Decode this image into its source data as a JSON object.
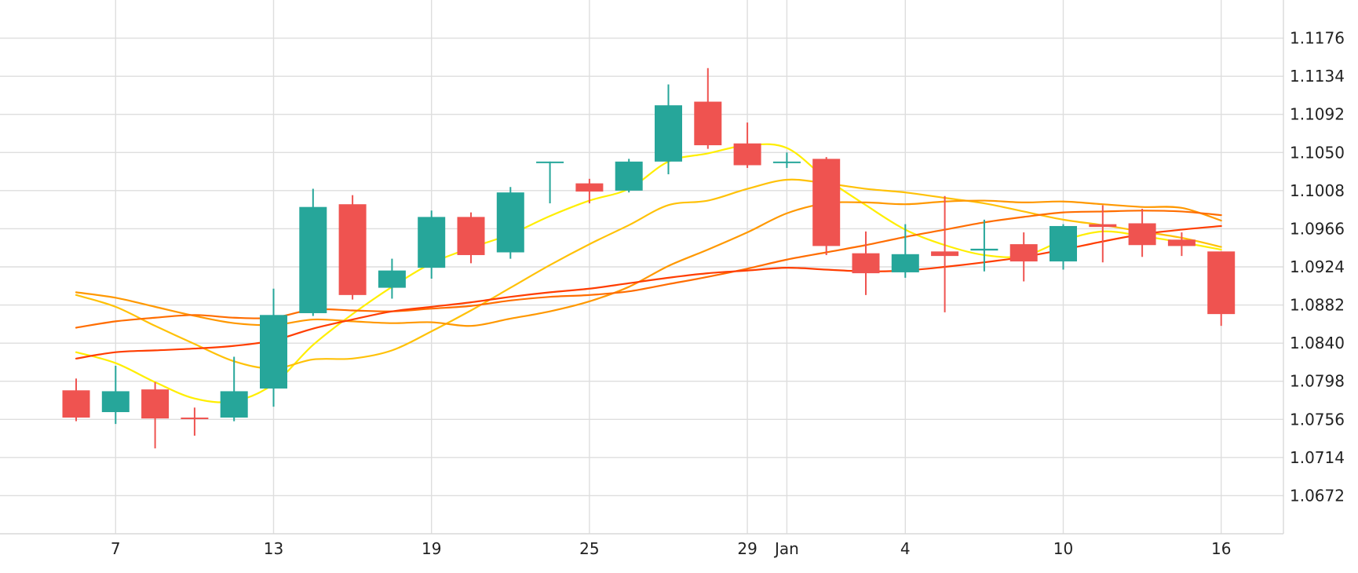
{
  "chart_data": {
    "type": "candlestick",
    "title": "",
    "xlabel": "",
    "ylabel": "",
    "ylim": [
      1.063,
      1.1218
    ],
    "y_ticks": [
      1.1176,
      1.1134,
      1.1092,
      1.105,
      1.1008,
      1.0966,
      1.0924,
      1.0882,
      1.084,
      1.0798,
      1.0756,
      1.0714,
      1.0672
    ],
    "x_tick_labels": [
      {
        "pos": 1,
        "label": "7"
      },
      {
        "pos": 5,
        "label": "13"
      },
      {
        "pos": 9,
        "label": "19"
      },
      {
        "pos": 13,
        "label": "25"
      },
      {
        "pos": 17,
        "label": "29"
      },
      {
        "pos": 18,
        "label": "Jan"
      },
      {
        "pos": 21,
        "label": "4"
      },
      {
        "pos": 25,
        "label": "10"
      },
      {
        "pos": 29,
        "label": "16"
      }
    ],
    "grid": true,
    "legend": "none",
    "colors": {
      "up": "#26a69a",
      "down": "#ef5350",
      "ma_colors": [
        "#ffee00",
        "#ffc107",
        "#ff9800",
        "#ff6d00",
        "#ff3d00"
      ]
    },
    "candles": [
      {
        "x": 0,
        "open": 1.0788,
        "high": 1.0801,
        "low": 1.0754,
        "close": 1.0758
      },
      {
        "x": 1,
        "open": 1.0764,
        "high": 1.0815,
        "low": 1.0751,
        "close": 1.0787
      },
      {
        "x": 2,
        "open": 1.0789,
        "high": 1.0797,
        "low": 1.0724,
        "close": 1.0757
      },
      {
        "x": 3,
        "open": 1.0758,
        "high": 1.0769,
        "low": 1.0738,
        "close": 1.0757
      },
      {
        "x": 4,
        "open": 1.0758,
        "high": 1.0825,
        "low": 1.0754,
        "close": 1.0787
      },
      {
        "x": 5,
        "open": 1.079,
        "high": 1.09,
        "low": 1.077,
        "close": 1.0871
      },
      {
        "x": 6,
        "open": 1.0873,
        "high": 1.101,
        "low": 1.087,
        "close": 1.099
      },
      {
        "x": 7,
        "open": 1.0993,
        "high": 1.1003,
        "low": 1.0888,
        "close": 1.0893
      },
      {
        "x": 8,
        "open": 1.0901,
        "high": 1.0933,
        "low": 1.0889,
        "close": 1.092
      },
      {
        "x": 9,
        "open": 1.0923,
        "high": 1.0986,
        "low": 1.0911,
        "close": 1.0979
      },
      {
        "x": 10,
        "open": 1.0979,
        "high": 1.0984,
        "low": 1.0928,
        "close": 1.0937
      },
      {
        "x": 11,
        "open": 1.094,
        "high": 1.1012,
        "low": 1.0933,
        "close": 1.1006
      },
      {
        "x": 12,
        "open": 1.104,
        "high": 1.104,
        "low": 1.0994,
        "close": 1.104
      },
      {
        "x": 13,
        "open": 1.1016,
        "high": 1.1021,
        "low": 1.0994,
        "close": 1.1007
      },
      {
        "x": 14,
        "open": 1.1008,
        "high": 1.1043,
        "low": 1.1006,
        "close": 1.104
      },
      {
        "x": 15,
        "open": 1.104,
        "high": 1.1125,
        "low": 1.1026,
        "close": 1.1102
      },
      {
        "x": 16,
        "open": 1.1106,
        "high": 1.1143,
        "low": 1.1054,
        "close": 1.1058
      },
      {
        "x": 17,
        "open": 1.106,
        "high": 1.1083,
        "low": 1.1033,
        "close": 1.1036
      },
      {
        "x": 18,
        "open": 1.104,
        "high": 1.105,
        "low": 1.1033,
        "close": 1.104
      },
      {
        "x": 19,
        "open": 1.1043,
        "high": 1.1045,
        "low": 1.0937,
        "close": 1.0947
      },
      {
        "x": 20,
        "open": 1.0939,
        "high": 1.0963,
        "low": 1.0893,
        "close": 1.0917
      },
      {
        "x": 21,
        "open": 1.0918,
        "high": 1.0971,
        "low": 1.0912,
        "close": 1.0938
      },
      {
        "x": 22,
        "open": 1.0941,
        "high": 1.1002,
        "low": 1.0874,
        "close": 1.0936
      },
      {
        "x": 23,
        "open": 1.0942,
        "high": 1.0976,
        "low": 1.0919,
        "close": 1.0944
      },
      {
        "x": 24,
        "open": 1.0949,
        "high": 1.0962,
        "low": 1.0908,
        "close": 1.093
      },
      {
        "x": 25,
        "open": 1.093,
        "high": 1.0971,
        "low": 1.0921,
        "close": 1.0969
      },
      {
        "x": 26,
        "open": 1.0971,
        "high": 1.0992,
        "low": 1.0929,
        "close": 1.0968
      },
      {
        "x": 27,
        "open": 1.0972,
        "high": 1.0988,
        "low": 1.0935,
        "close": 1.0948
      },
      {
        "x": 28,
        "open": 1.0954,
        "high": 1.0962,
        "low": 1.0936,
        "close": 1.0947
      },
      {
        "x": 29,
        "open": 1.0941,
        "high": 1.0941,
        "low": 1.0859,
        "close": 1.0872
      }
    ],
    "moving_averages": [
      {
        "color": "#ffee00",
        "points": [
          [
            0,
            1.083
          ],
          [
            1,
            1.0818
          ],
          [
            2,
            1.0797
          ],
          [
            3,
            1.0779
          ],
          [
            4,
            1.0776
          ],
          [
            5,
            1.0795
          ],
          [
            6,
            1.0838
          ],
          [
            7,
            1.0872
          ],
          [
            8,
            1.0902
          ],
          [
            9,
            1.0928
          ],
          [
            10,
            1.0945
          ],
          [
            11,
            1.096
          ],
          [
            12,
            1.098
          ],
          [
            13,
            1.0997
          ],
          [
            14,
            1.101
          ],
          [
            15,
            1.104
          ],
          [
            16,
            1.1049
          ],
          [
            17,
            1.1058
          ],
          [
            18,
            1.1055
          ],
          [
            19,
            1.1021
          ],
          [
            20,
            1.0992
          ],
          [
            21,
            1.0965
          ],
          [
            22,
            1.0948
          ],
          [
            23,
            1.0937
          ],
          [
            24,
            1.0936
          ],
          [
            25,
            1.0953
          ],
          [
            26,
            1.0963
          ],
          [
            27,
            1.0958
          ],
          [
            28,
            1.0951
          ],
          [
            29,
            1.0943
          ]
        ]
      },
      {
        "color": "#ffc107",
        "points": [
          [
            0,
            1.0893
          ],
          [
            1,
            1.088
          ],
          [
            2,
            1.0859
          ],
          [
            3,
            1.0839
          ],
          [
            4,
            1.082
          ],
          [
            5,
            1.0812
          ],
          [
            6,
            1.0822
          ],
          [
            7,
            1.0823
          ],
          [
            8,
            1.0832
          ],
          [
            9,
            1.0853
          ],
          [
            10,
            1.0876
          ],
          [
            11,
            1.0901
          ],
          [
            12,
            1.0926
          ],
          [
            13,
            1.0949
          ],
          [
            14,
            1.097
          ],
          [
            15,
            1.0992
          ],
          [
            16,
            1.0997
          ],
          [
            17,
            1.101
          ],
          [
            18,
            1.102
          ],
          [
            19,
            1.1016
          ],
          [
            20,
            1.101
          ],
          [
            21,
            1.1006
          ],
          [
            22,
            1.1
          ],
          [
            23,
            1.0994
          ],
          [
            24,
            1.0985
          ],
          [
            25,
            1.0976
          ],
          [
            26,
            1.097
          ],
          [
            27,
            1.0963
          ],
          [
            28,
            1.0956
          ],
          [
            29,
            1.0946
          ]
        ]
      },
      {
        "color": "#ff9800",
        "points": [
          [
            0,
            1.0896
          ],
          [
            1,
            1.089
          ],
          [
            2,
            1.088
          ],
          [
            3,
            1.087
          ],
          [
            4,
            1.0862
          ],
          [
            5,
            1.086
          ],
          [
            6,
            1.0866
          ],
          [
            7,
            1.0864
          ],
          [
            8,
            1.0862
          ],
          [
            9,
            1.0863
          ],
          [
            10,
            1.0859
          ],
          [
            11,
            1.0867
          ],
          [
            12,
            1.0875
          ],
          [
            13,
            1.0886
          ],
          [
            14,
            1.0902
          ],
          [
            15,
            1.0925
          ],
          [
            16,
            1.0943
          ],
          [
            17,
            1.0962
          ],
          [
            18,
            1.0983
          ],
          [
            19,
            1.0994
          ],
          [
            20,
            1.0995
          ],
          [
            21,
            1.0993
          ],
          [
            22,
            1.0996
          ],
          [
            23,
            1.0997
          ],
          [
            24,
            1.0995
          ],
          [
            25,
            1.0996
          ],
          [
            26,
            1.0993
          ],
          [
            27,
            1.099
          ],
          [
            28,
            1.0989
          ],
          [
            29,
            1.0975
          ]
        ]
      },
      {
        "color": "#ff6d00",
        "points": [
          [
            0,
            1.0857
          ],
          [
            1,
            1.0864
          ],
          [
            2,
            1.0868
          ],
          [
            3,
            1.0871
          ],
          [
            4,
            1.0868
          ],
          [
            5,
            1.0868
          ],
          [
            6,
            1.0877
          ],
          [
            7,
            1.0876
          ],
          [
            8,
            1.0875
          ],
          [
            9,
            1.0878
          ],
          [
            10,
            1.0881
          ],
          [
            11,
            1.0887
          ],
          [
            12,
            1.0891
          ],
          [
            13,
            1.0893
          ],
          [
            14,
            1.0897
          ],
          [
            15,
            1.0905
          ],
          [
            16,
            1.0913
          ],
          [
            17,
            1.0922
          ],
          [
            18,
            1.0932
          ],
          [
            19,
            1.094
          ],
          [
            20,
            1.0948
          ],
          [
            21,
            1.0957
          ],
          [
            22,
            1.0965
          ],
          [
            23,
            1.0973
          ],
          [
            24,
            1.0979
          ],
          [
            25,
            1.0984
          ],
          [
            26,
            1.0985
          ],
          [
            27,
            1.0986
          ],
          [
            28,
            1.0985
          ],
          [
            29,
            1.0981
          ]
        ]
      },
      {
        "color": "#ff3d00",
        "points": [
          [
            0,
            1.0823
          ],
          [
            1,
            1.083
          ],
          [
            2,
            1.0832
          ],
          [
            3,
            1.0834
          ],
          [
            4,
            1.0837
          ],
          [
            5,
            1.0843
          ],
          [
            6,
            1.0856
          ],
          [
            7,
            1.0866
          ],
          [
            8,
            1.0875
          ],
          [
            9,
            1.088
          ],
          [
            10,
            1.0885
          ],
          [
            11,
            1.0891
          ],
          [
            12,
            1.0896
          ],
          [
            13,
            1.09
          ],
          [
            14,
            1.0906
          ],
          [
            15,
            1.0912
          ],
          [
            16,
            1.0917
          ],
          [
            17,
            1.092
          ],
          [
            18,
            1.0923
          ],
          [
            19,
            1.0921
          ],
          [
            20,
            1.0919
          ],
          [
            21,
            1.092
          ],
          [
            22,
            1.0924
          ],
          [
            23,
            1.0929
          ],
          [
            24,
            1.0935
          ],
          [
            25,
            1.0943
          ],
          [
            26,
            1.0952
          ],
          [
            27,
            1.096
          ],
          [
            28,
            1.0965
          ],
          [
            29,
            1.0969
          ]
        ]
      }
    ]
  }
}
